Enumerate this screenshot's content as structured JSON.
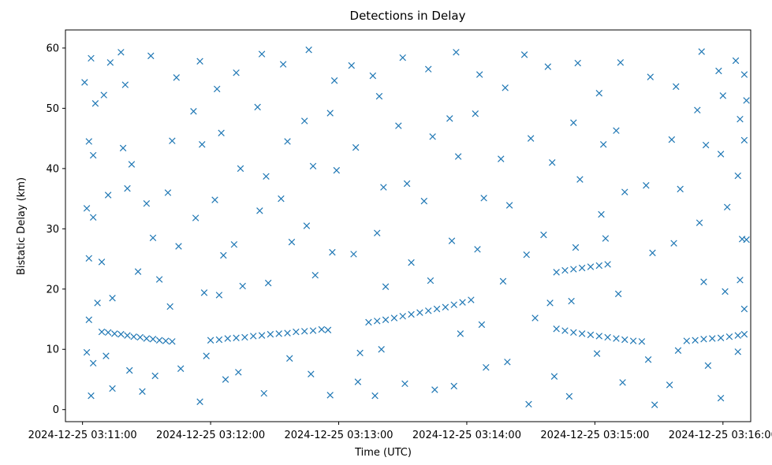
{
  "chart_data": {
    "type": "scatter",
    "title": "Detections in Delay",
    "xlabel": "Time (UTC)",
    "ylabel": "Bistatic Delay (km)",
    "marker": "x",
    "grid": false,
    "color": "#1f77b4",
    "xlim": [
      "2024-12-25 03:10:52",
      "2024-12-25 03:16:13"
    ],
    "ylim": [
      -2,
      63
    ],
    "x_ticks": [
      "2024-12-25 03:11:00",
      "2024-12-25 03:12:00",
      "2024-12-25 03:13:00",
      "2024-12-25 03:14:00",
      "2024-12-25 03:15:00",
      "2024-12-25 03:16:00"
    ],
    "y_ticks": [
      0,
      10,
      20,
      30,
      40,
      50,
      60
    ],
    "series": [
      {
        "points": [
          [
            "2024-12-25 03:11:09",
            12.9
          ],
          [
            "2024-12-25 03:11:12",
            12.8
          ],
          [
            "2024-12-25 03:11:15",
            12.6
          ],
          [
            "2024-12-25 03:11:18",
            12.5
          ],
          [
            "2024-12-25 03:11:21",
            12.3
          ],
          [
            "2024-12-25 03:11:24",
            12.1
          ],
          [
            "2024-12-25 03:11:27",
            12.0
          ],
          [
            "2024-12-25 03:11:30",
            11.8
          ],
          [
            "2024-12-25 03:11:33",
            11.7
          ],
          [
            "2024-12-25 03:11:36",
            11.5
          ],
          [
            "2024-12-25 03:11:39",
            11.4
          ],
          [
            "2024-12-25 03:11:42",
            11.3
          ],
          [
            "2024-12-25 03:12:00",
            11.5
          ],
          [
            "2024-12-25 03:12:04",
            11.6
          ],
          [
            "2024-12-25 03:12:08",
            11.8
          ],
          [
            "2024-12-25 03:12:12",
            11.9
          ],
          [
            "2024-12-25 03:12:16",
            12.0
          ],
          [
            "2024-12-25 03:12:20",
            12.2
          ],
          [
            "2024-12-25 03:12:24",
            12.3
          ],
          [
            "2024-12-25 03:12:28",
            12.5
          ],
          [
            "2024-12-25 03:12:32",
            12.6
          ],
          [
            "2024-12-25 03:12:36",
            12.7
          ],
          [
            "2024-12-25 03:12:40",
            12.9
          ],
          [
            "2024-12-25 03:12:44",
            13.0
          ],
          [
            "2024-12-25 03:12:48",
            13.1
          ],
          [
            "2024-12-25 03:12:52",
            13.3
          ],
          [
            "2024-12-25 03:13:14",
            14.5
          ],
          [
            "2024-12-25 03:13:18",
            14.7
          ],
          [
            "2024-12-25 03:13:22",
            14.9
          ],
          [
            "2024-12-25 03:13:26",
            15.2
          ],
          [
            "2024-12-25 03:13:30",
            15.5
          ],
          [
            "2024-12-25 03:13:34",
            15.8
          ],
          [
            "2024-12-25 03:13:38",
            16.1
          ],
          [
            "2024-12-25 03:13:42",
            16.4
          ],
          [
            "2024-12-25 03:13:46",
            16.7
          ],
          [
            "2024-12-25 03:13:50",
            17.0
          ],
          [
            "2024-12-25 03:13:54",
            17.4
          ],
          [
            "2024-12-25 03:13:58",
            17.8
          ],
          [
            "2024-12-25 03:14:02",
            18.2
          ],
          [
            "2024-12-25 03:14:42",
            22.8
          ],
          [
            "2024-12-25 03:14:46",
            23.1
          ],
          [
            "2024-12-25 03:14:50",
            23.3
          ],
          [
            "2024-12-25 03:14:54",
            23.5
          ],
          [
            "2024-12-25 03:14:58",
            23.7
          ],
          [
            "2024-12-25 03:15:02",
            23.9
          ],
          [
            "2024-12-25 03:15:06",
            24.1
          ],
          [
            "2024-12-25 03:14:42",
            13.4
          ],
          [
            "2024-12-25 03:14:46",
            13.1
          ],
          [
            "2024-12-25 03:14:50",
            12.8
          ],
          [
            "2024-12-25 03:14:54",
            12.6
          ],
          [
            "2024-12-25 03:14:58",
            12.4
          ],
          [
            "2024-12-25 03:15:02",
            12.2
          ],
          [
            "2024-12-25 03:15:06",
            12.0
          ],
          [
            "2024-12-25 03:15:10",
            11.8
          ],
          [
            "2024-12-25 03:15:14",
            11.6
          ],
          [
            "2024-12-25 03:15:18",
            11.4
          ],
          [
            "2024-12-25 03:15:22",
            11.3
          ],
          [
            "2024-12-25 03:15:43",
            11.4
          ],
          [
            "2024-12-25 03:15:47",
            11.5
          ],
          [
            "2024-12-25 03:15:51",
            11.7
          ],
          [
            "2024-12-25 03:15:55",
            11.8
          ],
          [
            "2024-12-25 03:15:59",
            11.9
          ],
          [
            "2024-12-25 03:16:03",
            12.1
          ],
          [
            "2024-12-25 03:16:07",
            12.3
          ],
          [
            "2024-12-25 03:16:10",
            12.5
          ],
          [
            "2024-12-25 03:11:01",
            54.3
          ],
          [
            "2024-12-25 03:11:04",
            58.3
          ],
          [
            "2024-12-25 03:11:06",
            50.8
          ],
          [
            "2024-12-25 03:11:03",
            44.5
          ],
          [
            "2024-12-25 03:11:05",
            42.2
          ],
          [
            "2024-12-25 03:11:02",
            33.4
          ],
          [
            "2024-12-25 03:11:05",
            31.9
          ],
          [
            "2024-12-25 03:11:03",
            25.1
          ],
          [
            "2024-12-25 03:11:07",
            17.7
          ],
          [
            "2024-12-25 03:11:03",
            14.9
          ],
          [
            "2024-12-25 03:11:02",
            9.5
          ],
          [
            "2024-12-25 03:11:05",
            7.7
          ],
          [
            "2024-12-25 03:11:04",
            2.3
          ],
          [
            "2024-12-25 03:11:10",
            52.2
          ],
          [
            "2024-12-25 03:11:13",
            57.6
          ],
          [
            "2024-12-25 03:11:12",
            35.6
          ],
          [
            "2024-12-25 03:11:09",
            24.5
          ],
          [
            "2024-12-25 03:11:14",
            18.5
          ],
          [
            "2024-12-25 03:11:11",
            8.9
          ],
          [
            "2024-12-25 03:11:14",
            3.5
          ],
          [
            "2024-12-25 03:11:18",
            59.3
          ],
          [
            "2024-12-25 03:11:20",
            53.9
          ],
          [
            "2024-12-25 03:11:19",
            43.4
          ],
          [
            "2024-12-25 03:11:21",
            36.7
          ],
          [
            "2024-12-25 03:11:23",
            40.7
          ],
          [
            "2024-12-25 03:11:26",
            22.9
          ],
          [
            "2024-12-25 03:11:22",
            6.5
          ],
          [
            "2024-12-25 03:11:28",
            3.0
          ],
          [
            "2024-12-25 03:11:32",
            58.7
          ],
          [
            "2024-12-25 03:11:30",
            34.2
          ],
          [
            "2024-12-25 03:11:33",
            28.5
          ],
          [
            "2024-12-25 03:11:36",
            21.6
          ],
          [
            "2024-12-25 03:11:34",
            5.6
          ],
          [
            "2024-12-25 03:11:44",
            55.1
          ],
          [
            "2024-12-25 03:11:42",
            44.6
          ],
          [
            "2024-12-25 03:11:40",
            36.0
          ],
          [
            "2024-12-25 03:11:45",
            27.1
          ],
          [
            "2024-12-25 03:11:41",
            17.1
          ],
          [
            "2024-12-25 03:11:46",
            6.8
          ],
          [
            "2024-12-25 03:11:55",
            57.8
          ],
          [
            "2024-12-25 03:11:52",
            49.5
          ],
          [
            "2024-12-25 03:11:56",
            44.0
          ],
          [
            "2024-12-25 03:11:53",
            31.8
          ],
          [
            "2024-12-25 03:11:57",
            19.4
          ],
          [
            "2024-12-25 03:11:58",
            8.9
          ],
          [
            "2024-12-25 03:11:55",
            1.3
          ],
          [
            "2024-12-25 03:12:03",
            53.2
          ],
          [
            "2024-12-25 03:12:05",
            45.9
          ],
          [
            "2024-12-25 03:12:02",
            34.8
          ],
          [
            "2024-12-25 03:12:06",
            25.6
          ],
          [
            "2024-12-25 03:12:04",
            19.0
          ],
          [
            "2024-12-25 03:12:07",
            5.0
          ],
          [
            "2024-12-25 03:12:12",
            55.9
          ],
          [
            "2024-12-25 03:12:14",
            40.0
          ],
          [
            "2024-12-25 03:12:11",
            27.4
          ],
          [
            "2024-12-25 03:12:15",
            20.5
          ],
          [
            "2024-12-25 03:12:13",
            6.2
          ],
          [
            "2024-12-25 03:12:24",
            59.0
          ],
          [
            "2024-12-25 03:12:22",
            50.2
          ],
          [
            "2024-12-25 03:12:26",
            38.7
          ],
          [
            "2024-12-25 03:12:23",
            33.0
          ],
          [
            "2024-12-25 03:12:27",
            21.0
          ],
          [
            "2024-12-25 03:12:25",
            2.7
          ],
          [
            "2024-12-25 03:12:34",
            57.3
          ],
          [
            "2024-12-25 03:12:36",
            44.5
          ],
          [
            "2024-12-25 03:12:33",
            35.0
          ],
          [
            "2024-12-25 03:12:38",
            27.8
          ],
          [
            "2024-12-25 03:12:37",
            8.5
          ],
          [
            "2024-12-25 03:12:46",
            59.7
          ],
          [
            "2024-12-25 03:12:44",
            47.9
          ],
          [
            "2024-12-25 03:12:48",
            40.4
          ],
          [
            "2024-12-25 03:12:45",
            30.5
          ],
          [
            "2024-12-25 03:12:49",
            22.3
          ],
          [
            "2024-12-25 03:12:47",
            5.9
          ],
          [
            "2024-12-25 03:12:58",
            54.6
          ],
          [
            "2024-12-25 03:12:56",
            49.2
          ],
          [
            "2024-12-25 03:12:59",
            39.7
          ],
          [
            "2024-12-25 03:12:57",
            26.1
          ],
          [
            "2024-12-25 03:12:55",
            13.2
          ],
          [
            "2024-12-25 03:12:56",
            2.4
          ],
          [
            "2024-12-25 03:13:06",
            57.1
          ],
          [
            "2024-12-25 03:13:08",
            43.5
          ],
          [
            "2024-12-25 03:13:07",
            25.8
          ],
          [
            "2024-12-25 03:13:10",
            9.4
          ],
          [
            "2024-12-25 03:13:09",
            4.6
          ],
          [
            "2024-12-25 03:13:16",
            55.4
          ],
          [
            "2024-12-25 03:13:19",
            52.0
          ],
          [
            "2024-12-25 03:13:21",
            36.9
          ],
          [
            "2024-12-25 03:13:18",
            29.3
          ],
          [
            "2024-12-25 03:13:22",
            20.4
          ],
          [
            "2024-12-25 03:13:20",
            10.0
          ],
          [
            "2024-12-25 03:13:17",
            2.3
          ],
          [
            "2024-12-25 03:13:30",
            58.4
          ],
          [
            "2024-12-25 03:13:28",
            47.1
          ],
          [
            "2024-12-25 03:13:32",
            37.5
          ],
          [
            "2024-12-25 03:13:34",
            24.4
          ],
          [
            "2024-12-25 03:13:31",
            4.3
          ],
          [
            "2024-12-25 03:13:42",
            56.5
          ],
          [
            "2024-12-25 03:13:44",
            45.3
          ],
          [
            "2024-12-25 03:13:40",
            34.6
          ],
          [
            "2024-12-25 03:13:43",
            21.4
          ],
          [
            "2024-12-25 03:13:45",
            3.3
          ],
          [
            "2024-12-25 03:13:55",
            59.3
          ],
          [
            "2024-12-25 03:13:52",
            48.3
          ],
          [
            "2024-12-25 03:13:56",
            42.0
          ],
          [
            "2024-12-25 03:13:53",
            28.0
          ],
          [
            "2024-12-25 03:13:57",
            12.6
          ],
          [
            "2024-12-25 03:13:54",
            3.9
          ],
          [
            "2024-12-25 03:14:06",
            55.6
          ],
          [
            "2024-12-25 03:14:04",
            49.1
          ],
          [
            "2024-12-25 03:14:08",
            35.1
          ],
          [
            "2024-12-25 03:14:05",
            26.6
          ],
          [
            "2024-12-25 03:14:07",
            14.1
          ],
          [
            "2024-12-25 03:14:09",
            7.0
          ],
          [
            "2024-12-25 03:14:18",
            53.4
          ],
          [
            "2024-12-25 03:14:16",
            41.6
          ],
          [
            "2024-12-25 03:14:20",
            33.9
          ],
          [
            "2024-12-25 03:14:17",
            21.3
          ],
          [
            "2024-12-25 03:14:19",
            7.9
          ],
          [
            "2024-12-25 03:14:27",
            58.9
          ],
          [
            "2024-12-25 03:14:30",
            45.0
          ],
          [
            "2024-12-25 03:14:28",
            25.7
          ],
          [
            "2024-12-25 03:14:32",
            15.2
          ],
          [
            "2024-12-25 03:14:29",
            0.9
          ],
          [
            "2024-12-25 03:14:38",
            56.9
          ],
          [
            "2024-12-25 03:14:40",
            41.0
          ],
          [
            "2024-12-25 03:14:36",
            29.0
          ],
          [
            "2024-12-25 03:14:39",
            17.7
          ],
          [
            "2024-12-25 03:14:41",
            5.5
          ],
          [
            "2024-12-25 03:14:52",
            57.5
          ],
          [
            "2024-12-25 03:14:50",
            47.6
          ],
          [
            "2024-12-25 03:14:53",
            38.2
          ],
          [
            "2024-12-25 03:14:51",
            26.9
          ],
          [
            "2024-12-25 03:14:49",
            18.0
          ],
          [
            "2024-12-25 03:14:48",
            2.2
          ],
          [
            "2024-12-25 03:15:02",
            52.5
          ],
          [
            "2024-12-25 03:15:04",
            44.0
          ],
          [
            "2024-12-25 03:15:03",
            32.4
          ],
          [
            "2024-12-25 03:15:05",
            28.4
          ],
          [
            "2024-12-25 03:15:01",
            9.3
          ],
          [
            "2024-12-25 03:15:12",
            57.6
          ],
          [
            "2024-12-25 03:15:10",
            46.3
          ],
          [
            "2024-12-25 03:15:14",
            36.1
          ],
          [
            "2024-12-25 03:15:11",
            19.2
          ],
          [
            "2024-12-25 03:15:13",
            4.5
          ],
          [
            "2024-12-25 03:15:26",
            55.2
          ],
          [
            "2024-12-25 03:15:24",
            37.2
          ],
          [
            "2024-12-25 03:15:27",
            26.0
          ],
          [
            "2024-12-25 03:15:25",
            8.3
          ],
          [
            "2024-12-25 03:15:28",
            0.8
          ],
          [
            "2024-12-25 03:15:38",
            53.6
          ],
          [
            "2024-12-25 03:15:36",
            44.8
          ],
          [
            "2024-12-25 03:15:40",
            36.6
          ],
          [
            "2024-12-25 03:15:37",
            27.6
          ],
          [
            "2024-12-25 03:15:39",
            9.8
          ],
          [
            "2024-12-25 03:15:35",
            4.1
          ],
          [
            "2024-12-25 03:15:50",
            59.4
          ],
          [
            "2024-12-25 03:15:48",
            49.7
          ],
          [
            "2024-12-25 03:15:52",
            43.9
          ],
          [
            "2024-12-25 03:15:49",
            31.0
          ],
          [
            "2024-12-25 03:15:51",
            21.2
          ],
          [
            "2024-12-25 03:15:53",
            7.3
          ],
          [
            "2024-12-25 03:15:58",
            56.2
          ],
          [
            "2024-12-25 03:16:00",
            52.1
          ],
          [
            "2024-12-25 03:15:59",
            42.4
          ],
          [
            "2024-12-25 03:16:02",
            33.6
          ],
          [
            "2024-12-25 03:16:01",
            19.6
          ],
          [
            "2024-12-25 03:15:59",
            1.9
          ],
          [
            "2024-12-25 03:16:06",
            57.9
          ],
          [
            "2024-12-25 03:16:08",
            48.2
          ],
          [
            "2024-12-25 03:16:07",
            38.8
          ],
          [
            "2024-12-25 03:16:09",
            28.3
          ],
          [
            "2024-12-25 03:16:08",
            21.5
          ],
          [
            "2024-12-25 03:16:07",
            9.6
          ],
          [
            "2024-12-25 03:16:10",
            55.6
          ],
          [
            "2024-12-25 03:16:11",
            51.3
          ],
          [
            "2024-12-25 03:16:10",
            44.7
          ],
          [
            "2024-12-25 03:16:11",
            28.2
          ],
          [
            "2024-12-25 03:16:10",
            16.7
          ]
        ]
      }
    ]
  }
}
